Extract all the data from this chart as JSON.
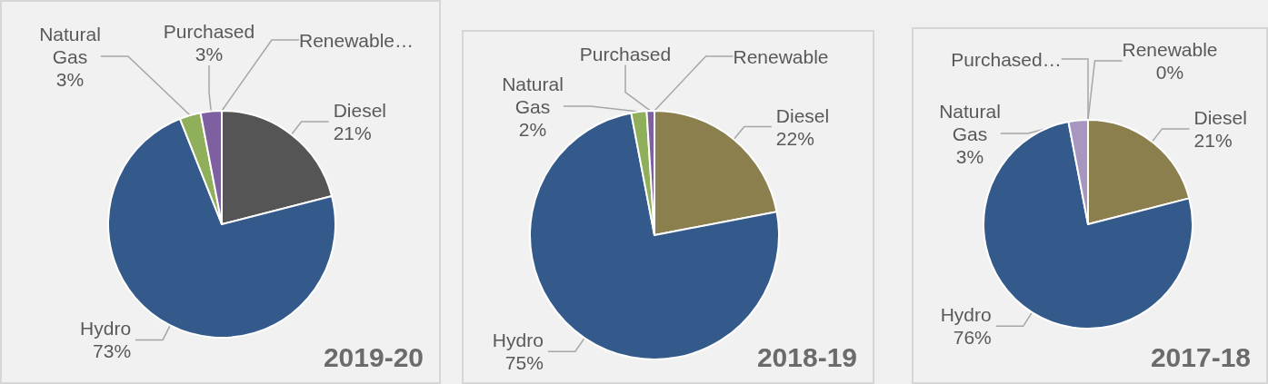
{
  "chart_data": [
    {
      "type": "pie",
      "title": "2019-20",
      "categories": [
        "Diesel",
        "Hydro",
        "Natural Gas",
        "Purchased",
        "Renewable…"
      ],
      "values": [
        21,
        73,
        3,
        3,
        0
      ],
      "colors": [
        "#555555",
        "#335a8a",
        "#8faf5a",
        "#7e5fa0",
        "#f2f2f2"
      ],
      "value_labels": [
        "21%",
        "73%",
        "3%",
        "3%",
        null
      ]
    },
    {
      "type": "pie",
      "title": "2018-19",
      "categories": [
        "Diesel",
        "Hydro",
        "Natural Gas",
        "Purchased",
        "Renewable"
      ],
      "values": [
        22,
        75,
        2,
        1,
        0
      ],
      "colors": [
        "#8b7f4e",
        "#335a8a",
        "#8faf5a",
        "#7e5fa0",
        "#d9d9d9"
      ],
      "value_labels": [
        "22%",
        "75%",
        "2%",
        null,
        null
      ]
    },
    {
      "type": "pie",
      "title": "2017-18",
      "categories": [
        "Diesel",
        "Hydro",
        "Natural Gas",
        "Purchased…",
        "Renewable"
      ],
      "values": [
        21,
        76,
        3,
        0,
        0
      ],
      "colors": [
        "#8b7f4e",
        "#335a8a",
        "#a797c0",
        "#7e5fa0",
        "#d9d9d9"
      ],
      "value_labels": [
        "21%",
        "76%",
        "3%",
        null,
        "0%"
      ]
    }
  ]
}
